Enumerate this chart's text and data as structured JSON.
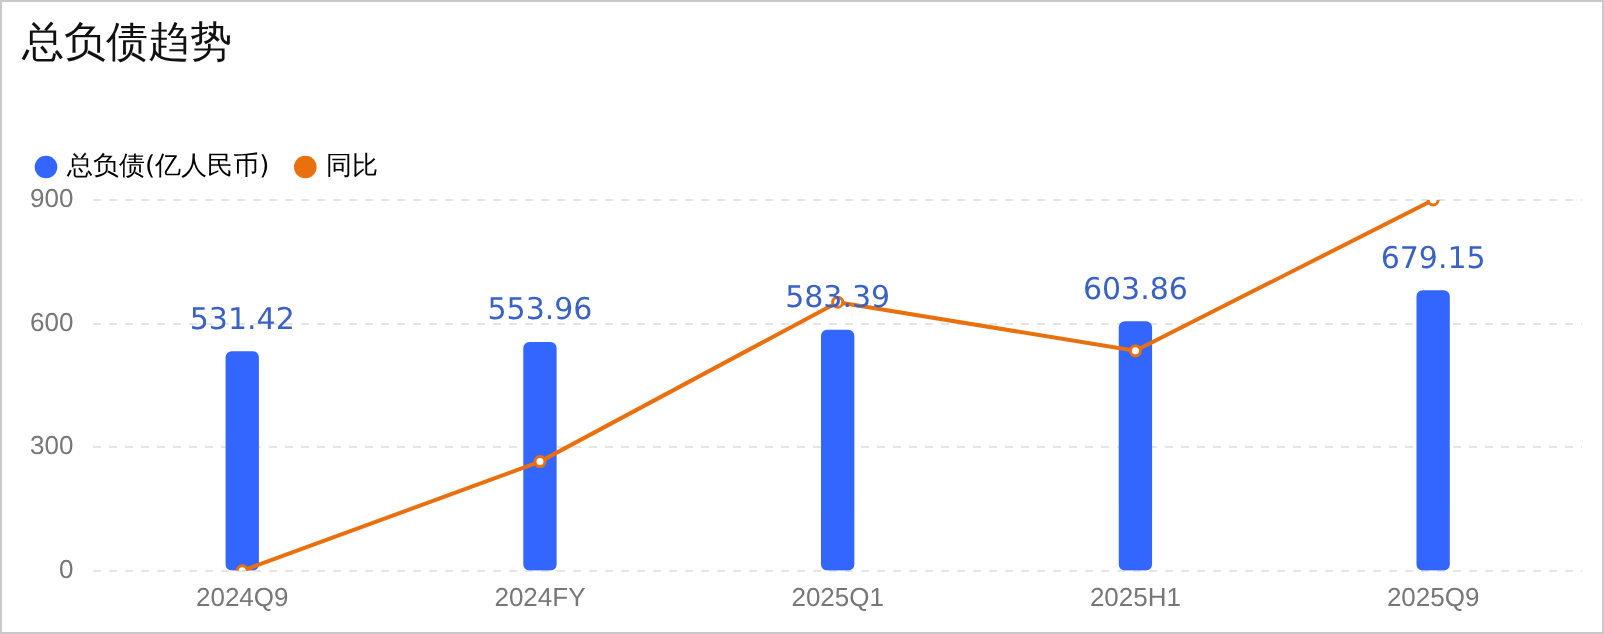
{
  "chart_data": {
    "type": "bar",
    "title": "总负债趋势",
    "categories": [
      "2024Q9",
      "2024FY",
      "2025Q1",
      "2025H1",
      "2025Q9"
    ],
    "series": [
      {
        "name": "总负债(亿人民币)",
        "color": "#3366ff",
        "values": [
          531.42,
          553.96,
          583.39,
          603.86,
          679.15
        ],
        "value_labels": [
          "531.42",
          "553.96",
          "583.39",
          "603.86",
          "679.15"
        ]
      },
      {
        "name": "同比",
        "type": "line",
        "color": "#e8700f",
        "values": [
          0,
          265,
          652,
          534,
          900
        ],
        "marker": "circle"
      }
    ],
    "ylim": [
      0,
      900
    ],
    "yticks": [
      0,
      300,
      600,
      900
    ],
    "grid": "y",
    "legend": "top left"
  }
}
